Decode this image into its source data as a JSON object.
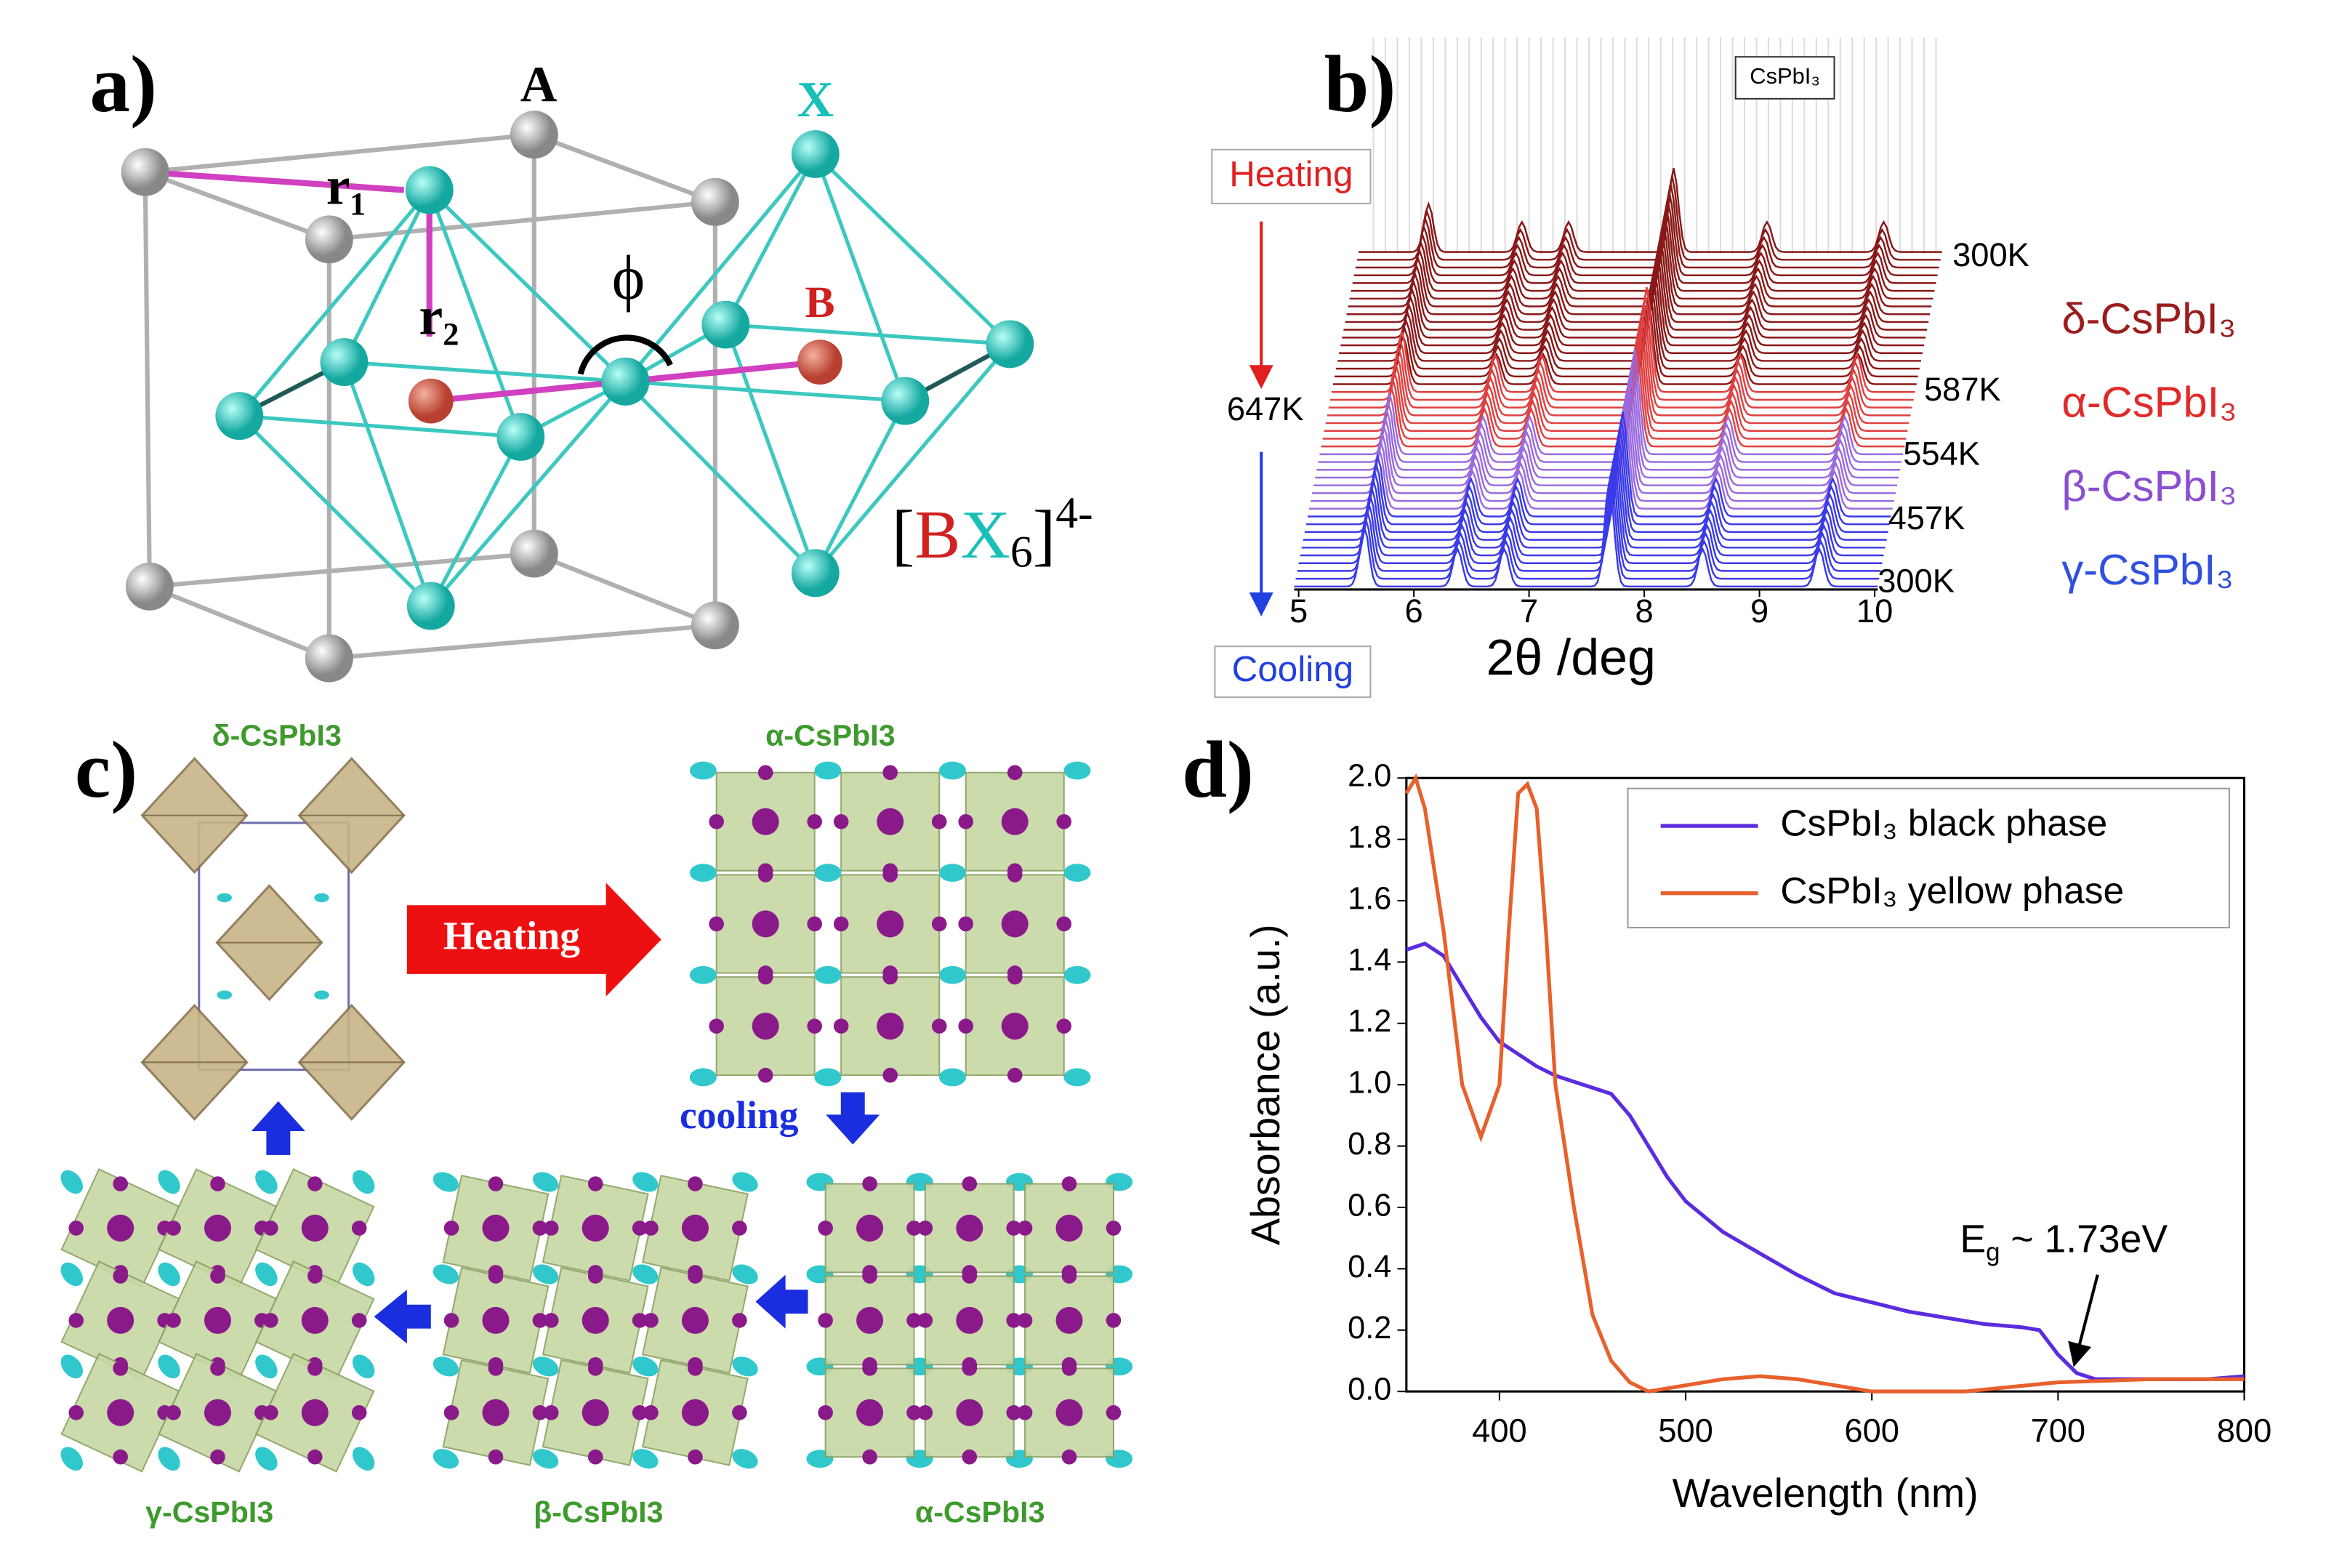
{
  "figure": {
    "a": {
      "label": "a)",
      "A": "A",
      "X": "X",
      "r1": "r₁",
      "r2": "r₂",
      "phi": "ϕ",
      "B": "B",
      "formula": {
        "open": "[",
        "B": "B",
        "X": "X",
        "sub": "6",
        "close": "]",
        "sup": "4-"
      }
    },
    "b": {
      "label": "b)",
      "box": "CsPbI₃",
      "heating": "Heating",
      "cooling": "Cooling",
      "start_temp": "647K",
      "temps": [
        "300K",
        "587K",
        "554K",
        "457K",
        "300K"
      ],
      "xticks": [
        5,
        6,
        7,
        8,
        9,
        10
      ],
      "xlabel": "2θ /deg",
      "phases": [
        "δ-CsPbI₃",
        "α-CsPbI₃",
        "β-CsPbI₃",
        "γ-CsPbI₃"
      ]
    },
    "c": {
      "label": "c)",
      "delta": "δ-CsPbI3",
      "alpha_top": "α-CsPbI3",
      "heating": "Heating",
      "cooling": "cooling",
      "gamma": "γ-CsPbI3",
      "beta": "β-CsPbI3",
      "alpha_bottom": "α-CsPbI3"
    },
    "d": {
      "label": "d)",
      "annotation": {
        "E": "E",
        "sub": "g",
        "rest": " ~ 1.73eV"
      }
    }
  },
  "chart_data": {
    "type": "line",
    "xlabel": "Wavelength (nm)",
    "ylabel": "Absorbance (a.u.)",
    "xlim": [
      350,
      800
    ],
    "ylim": [
      0,
      2
    ],
    "xticks": [
      400,
      500,
      600,
      700,
      800
    ],
    "yticks": [
      {
        "value": 0,
        "label": "0.0"
      },
      0.2,
      0.4,
      0.6,
      0.8,
      {
        "value": 1,
        "label": "1.0"
      },
      1.2,
      1.4,
      1.6,
      1.8,
      {
        "value": 2,
        "label": "2.0"
      }
    ],
    "legend": "upper right",
    "series": [
      {
        "name": "CsPbI₃ black phase",
        "color": "#5b2be0",
        "x": [
          350,
          360,
          370,
          380,
          390,
          400,
          410,
          420,
          430,
          440,
          450,
          460,
          470,
          480,
          490,
          500,
          520,
          540,
          560,
          580,
          600,
          620,
          640,
          660,
          680,
          690,
          700,
          710,
          720,
          740,
          760,
          780,
          800
        ],
        "values": [
          1.44,
          1.46,
          1.42,
          1.32,
          1.22,
          1.14,
          1.1,
          1.06,
          1.03,
          1.01,
          0.99,
          0.97,
          0.9,
          0.8,
          0.7,
          0.62,
          0.52,
          0.45,
          0.38,
          0.32,
          0.29,
          0.26,
          0.24,
          0.22,
          0.21,
          0.2,
          0.12,
          0.06,
          0.04,
          0.04,
          0.04,
          0.04,
          0.05
        ]
      },
      {
        "name": "CsPbI₃ yellow phase",
        "color": "#e8602c",
        "x": [
          350,
          355,
          360,
          370,
          380,
          390,
          400,
          405,
          410,
          415,
          420,
          425,
          430,
          440,
          450,
          460,
          470,
          480,
          500,
          520,
          540,
          560,
          580,
          600,
          650,
          700,
          750,
          800
        ],
        "values": [
          1.95,
          2.0,
          1.9,
          1.5,
          1.0,
          0.83,
          1.0,
          1.5,
          1.95,
          1.98,
          1.9,
          1.5,
          1.0,
          0.6,
          0.25,
          0.1,
          0.03,
          0.0,
          0.02,
          0.04,
          0.05,
          0.04,
          0.02,
          0.0,
          0.0,
          0.03,
          0.04,
          0.04
        ]
      }
    ]
  }
}
